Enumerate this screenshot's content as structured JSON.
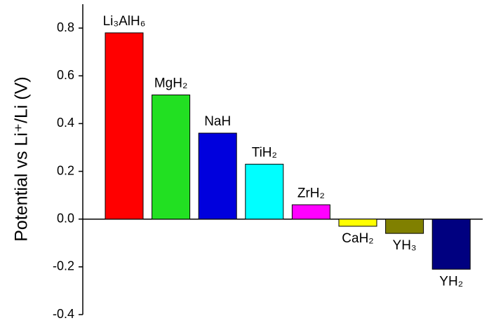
{
  "chart_data": {
    "type": "bar",
    "y_label": "Potential vs Li⁺/Li (V)",
    "categories": [
      "Li₃AlH₆",
      "MgH₂",
      "NaH",
      "TiH₂",
      "ZrH₂",
      "CaH₂",
      "YH₃",
      "YH₂"
    ],
    "values": [
      0.78,
      0.52,
      0.36,
      0.23,
      0.06,
      -0.03,
      -0.06,
      -0.21
    ],
    "colors": [
      "#ff0000",
      "#22e022",
      "#0000dd",
      "#00ffff",
      "#ff00ff",
      "#ffff00",
      "#808000",
      "#000080"
    ],
    "ylim": [
      -0.4,
      0.9
    ],
    "yticks": [
      -0.4,
      -0.2,
      {
        "value": 0,
        "label": "0.0"
      },
      0.2,
      0.4,
      0.6,
      0.8
    ],
    "grid": false
  }
}
